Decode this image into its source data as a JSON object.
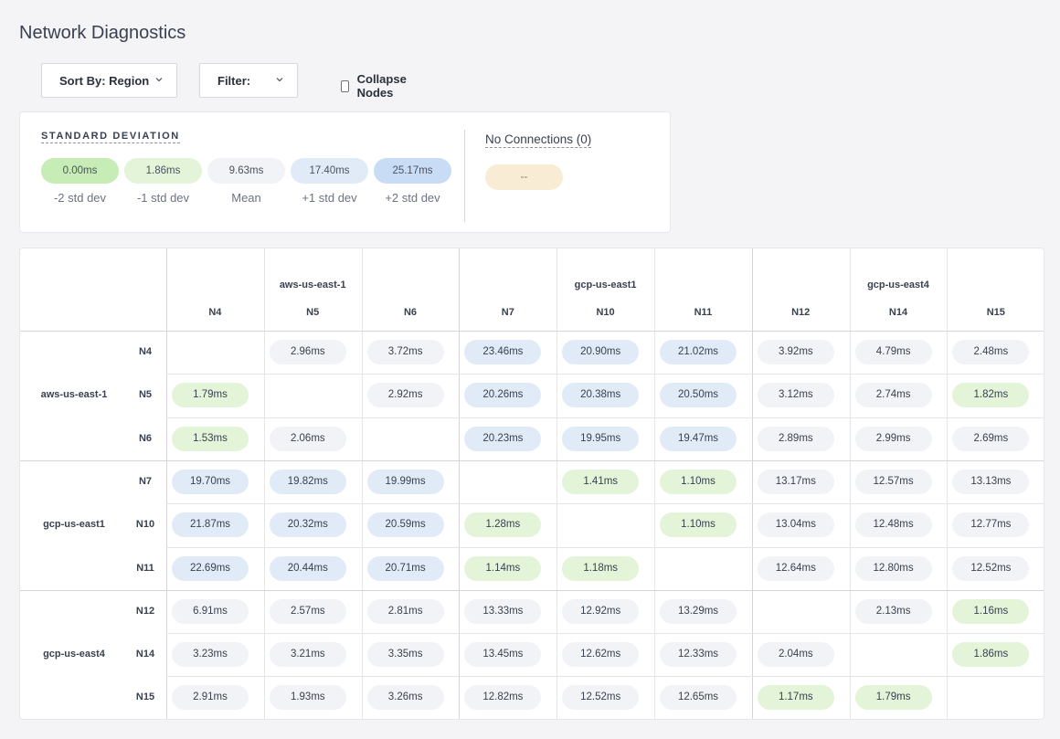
{
  "page": {
    "title": "Network Diagnostics"
  },
  "controls": {
    "sort_label": "Sort By: Region",
    "filter_label": "Filter:",
    "collapse_label": "Collapse Nodes"
  },
  "colors": {
    "minus2": "#c8ecb5",
    "minus1": "#e3f4d8",
    "mean": "#f2f3f6",
    "plus1": "#e1ebf8",
    "plus2": "#c9dcf6",
    "none": "#f9ecd4"
  },
  "legend": {
    "title": "STANDARD DEVIATION",
    "items": [
      {
        "value": "0.00ms",
        "caption": "-2 std dev",
        "level": "minus2"
      },
      {
        "value": "1.86ms",
        "caption": "-1 std dev",
        "level": "minus1"
      },
      {
        "value": "9.63ms",
        "caption": "Mean",
        "level": "mean"
      },
      {
        "value": "17.40ms",
        "caption": "+1 std dev",
        "level": "plus1"
      },
      {
        "value": "25.17ms",
        "caption": "+2 std dev",
        "level": "plus2"
      }
    ],
    "no_connections_title": "No Connections (0)",
    "no_connections_value": "--"
  },
  "matrix": {
    "regions": [
      {
        "name": "aws-us-east-1",
        "nodes": [
          "N4",
          "N5",
          "N6"
        ]
      },
      {
        "name": "gcp-us-east1",
        "nodes": [
          "N7",
          "N10",
          "N11"
        ]
      },
      {
        "name": "gcp-us-east4",
        "nodes": [
          "N12",
          "N14",
          "N15"
        ]
      }
    ],
    "rows": [
      {
        "node": "N4",
        "cells": [
          null,
          {
            "v": "2.96ms",
            "c": "mean"
          },
          {
            "v": "3.72ms",
            "c": "mean"
          },
          {
            "v": "23.46ms",
            "c": "plus1"
          },
          {
            "v": "20.90ms",
            "c": "plus1"
          },
          {
            "v": "21.02ms",
            "c": "plus1"
          },
          {
            "v": "3.92ms",
            "c": "mean"
          },
          {
            "v": "4.79ms",
            "c": "mean"
          },
          {
            "v": "2.48ms",
            "c": "mean"
          }
        ]
      },
      {
        "node": "N5",
        "cells": [
          {
            "v": "1.79ms",
            "c": "minus1"
          },
          null,
          {
            "v": "2.92ms",
            "c": "mean"
          },
          {
            "v": "20.26ms",
            "c": "plus1"
          },
          {
            "v": "20.38ms",
            "c": "plus1"
          },
          {
            "v": "20.50ms",
            "c": "plus1"
          },
          {
            "v": "3.12ms",
            "c": "mean"
          },
          {
            "v": "2.74ms",
            "c": "mean"
          },
          {
            "v": "1.82ms",
            "c": "minus1"
          }
        ]
      },
      {
        "node": "N6",
        "cells": [
          {
            "v": "1.53ms",
            "c": "minus1"
          },
          {
            "v": "2.06ms",
            "c": "mean"
          },
          null,
          {
            "v": "20.23ms",
            "c": "plus1"
          },
          {
            "v": "19.95ms",
            "c": "plus1"
          },
          {
            "v": "19.47ms",
            "c": "plus1"
          },
          {
            "v": "2.89ms",
            "c": "mean"
          },
          {
            "v": "2.99ms",
            "c": "mean"
          },
          {
            "v": "2.69ms",
            "c": "mean"
          }
        ]
      },
      {
        "node": "N7",
        "cells": [
          {
            "v": "19.70ms",
            "c": "plus1"
          },
          {
            "v": "19.82ms",
            "c": "plus1"
          },
          {
            "v": "19.99ms",
            "c": "plus1"
          },
          null,
          {
            "v": "1.41ms",
            "c": "minus1"
          },
          {
            "v": "1.10ms",
            "c": "minus1"
          },
          {
            "v": "13.17ms",
            "c": "mean"
          },
          {
            "v": "12.57ms",
            "c": "mean"
          },
          {
            "v": "13.13ms",
            "c": "mean"
          }
        ]
      },
      {
        "node": "N10",
        "cells": [
          {
            "v": "21.87ms",
            "c": "plus1"
          },
          {
            "v": "20.32ms",
            "c": "plus1"
          },
          {
            "v": "20.59ms",
            "c": "plus1"
          },
          {
            "v": "1.28ms",
            "c": "minus1"
          },
          null,
          {
            "v": "1.10ms",
            "c": "minus1"
          },
          {
            "v": "13.04ms",
            "c": "mean"
          },
          {
            "v": "12.48ms",
            "c": "mean"
          },
          {
            "v": "12.77ms",
            "c": "mean"
          }
        ]
      },
      {
        "node": "N11",
        "cells": [
          {
            "v": "22.69ms",
            "c": "plus1"
          },
          {
            "v": "20.44ms",
            "c": "plus1"
          },
          {
            "v": "20.71ms",
            "c": "plus1"
          },
          {
            "v": "1.14ms",
            "c": "minus1"
          },
          {
            "v": "1.18ms",
            "c": "minus1"
          },
          null,
          {
            "v": "12.64ms",
            "c": "mean"
          },
          {
            "v": "12.80ms",
            "c": "mean"
          },
          {
            "v": "12.52ms",
            "c": "mean"
          }
        ]
      },
      {
        "node": "N12",
        "cells": [
          {
            "v": "6.91ms",
            "c": "mean"
          },
          {
            "v": "2.57ms",
            "c": "mean"
          },
          {
            "v": "2.81ms",
            "c": "mean"
          },
          {
            "v": "13.33ms",
            "c": "mean"
          },
          {
            "v": "12.92ms",
            "c": "mean"
          },
          {
            "v": "13.29ms",
            "c": "mean"
          },
          null,
          {
            "v": "2.13ms",
            "c": "mean"
          },
          {
            "v": "1.16ms",
            "c": "minus1"
          }
        ]
      },
      {
        "node": "N14",
        "cells": [
          {
            "v": "3.23ms",
            "c": "mean"
          },
          {
            "v": "3.21ms",
            "c": "mean"
          },
          {
            "v": "3.35ms",
            "c": "mean"
          },
          {
            "v": "13.45ms",
            "c": "mean"
          },
          {
            "v": "12.62ms",
            "c": "mean"
          },
          {
            "v": "12.33ms",
            "c": "mean"
          },
          {
            "v": "2.04ms",
            "c": "mean"
          },
          null,
          {
            "v": "1.86ms",
            "c": "minus1"
          }
        ]
      },
      {
        "node": "N15",
        "cells": [
          {
            "v": "2.91ms",
            "c": "mean"
          },
          {
            "v": "1.93ms",
            "c": "mean"
          },
          {
            "v": "3.26ms",
            "c": "mean"
          },
          {
            "v": "12.82ms",
            "c": "mean"
          },
          {
            "v": "12.52ms",
            "c": "mean"
          },
          {
            "v": "12.65ms",
            "c": "mean"
          },
          {
            "v": "1.17ms",
            "c": "minus1"
          },
          {
            "v": "1.79ms",
            "c": "minus1"
          },
          null
        ]
      }
    ]
  }
}
